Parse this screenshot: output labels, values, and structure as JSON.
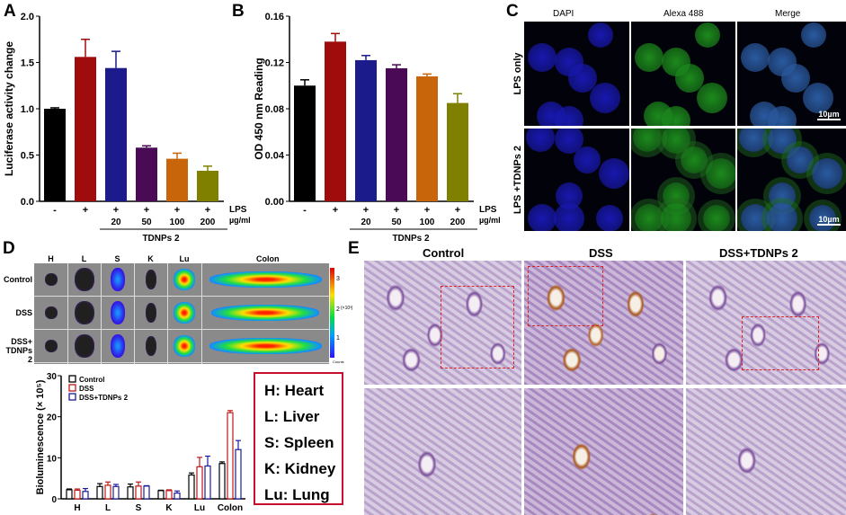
{
  "panels": {
    "a": "A",
    "b": "B",
    "c": "C",
    "d": "D",
    "e": "E"
  },
  "chart_data": [
    {
      "id": "A",
      "type": "bar",
      "ylabel": "Luciferase activity change",
      "ylim": [
        0,
        2.0
      ],
      "yticks": [
        "0.0",
        "0.5",
        "1.0",
        "1.5",
        "2.0"
      ],
      "categories": [
        "-",
        "+",
        "+",
        "+",
        "+",
        "+"
      ],
      "doses": [
        "",
        "",
        "20",
        "50",
        "100",
        "200"
      ],
      "group_label": "TDNPs 2",
      "row_label_1": "LPS",
      "row_label_2": "µg/ml",
      "values": [
        1.0,
        1.56,
        1.44,
        0.58,
        0.46,
        0.33
      ],
      "errors": [
        0.01,
        0.19,
        0.18,
        0.02,
        0.06,
        0.05
      ],
      "colors": [
        "#000000",
        "#a00c0c",
        "#1b1b8c",
        "#4a0a55",
        "#c8640a",
        "#808000"
      ]
    },
    {
      "id": "B",
      "type": "bar",
      "ylabel": "OD 450 nm Reading",
      "ylim": [
        0,
        0.16
      ],
      "yticks": [
        "0.00",
        "0.04",
        "0.08",
        "0.12",
        "0.16"
      ],
      "categories": [
        "-",
        "+",
        "+",
        "+",
        "+",
        "+"
      ],
      "doses": [
        "",
        "",
        "20",
        "50",
        "100",
        "200"
      ],
      "group_label": "TDNPs 2",
      "row_label_1": "LPS",
      "row_label_2": "µg/ml",
      "values": [
        0.1,
        0.138,
        0.122,
        0.115,
        0.108,
        0.085
      ],
      "errors": [
        0.005,
        0.007,
        0.004,
        0.003,
        0.002,
        0.008
      ],
      "colors": [
        "#000000",
        "#a00c0c",
        "#1b1b8c",
        "#4a0a55",
        "#c8640a",
        "#808000"
      ]
    },
    {
      "id": "D",
      "type": "bar",
      "ylabel": "Bioluminescence (× 10⁵)",
      "ylim": [
        0,
        30
      ],
      "yticks": [
        "0",
        "10",
        "20",
        "30"
      ],
      "categories": [
        "H",
        "L",
        "S",
        "K",
        "Lu",
        "Colon"
      ],
      "legend_position": "top-left",
      "series": [
        {
          "name": "Control",
          "color": "#000000",
          "values": [
            2.2,
            3.0,
            2.9,
            2.0,
            5.8,
            8.6
          ],
          "errors": [
            0.2,
            0.7,
            0.7,
            0.1,
            0.5,
            0.4
          ]
        },
        {
          "name": "DSS",
          "color": "#c01818",
          "values": [
            2.1,
            3.3,
            3.1,
            2.0,
            7.8,
            21.0
          ],
          "errors": [
            0.3,
            0.8,
            1.0,
            0.2,
            2.3,
            0.5
          ]
        },
        {
          "name": "DSS+TDNPs 2",
          "color": "#1b1b9c",
          "values": [
            1.8,
            3.0,
            3.1,
            1.4,
            8.0,
            12.0
          ],
          "errors": [
            0.7,
            0.5,
            0.1,
            0.5,
            2.4,
            2.2
          ]
        }
      ]
    }
  ],
  "panel_c": {
    "columns": [
      "DAPI",
      "Alexa 488",
      "Merge"
    ],
    "rows": [
      "LPS only",
      "LPS +TDNPs 2"
    ],
    "scale_bar": "10µm"
  },
  "panel_d_images": {
    "columns": [
      "H",
      "L",
      "S",
      "K",
      "Lu",
      "Colon"
    ],
    "rows": [
      "Control",
      "DSS",
      "DSS+\nTDNPs 2"
    ],
    "colorbar_ticks": [
      "3",
      "2",
      "1"
    ],
    "colorbar_unit": "(×10³)",
    "colorbar_label": "Counts"
  },
  "legend_box": [
    "H: Heart",
    "L: Liver",
    "S: Spleen",
    "K: Kidney",
    "Lu: Lung"
  ],
  "panel_e": {
    "columns": [
      "Control",
      "DSS",
      "DSS+TDNPs 2"
    ]
  }
}
